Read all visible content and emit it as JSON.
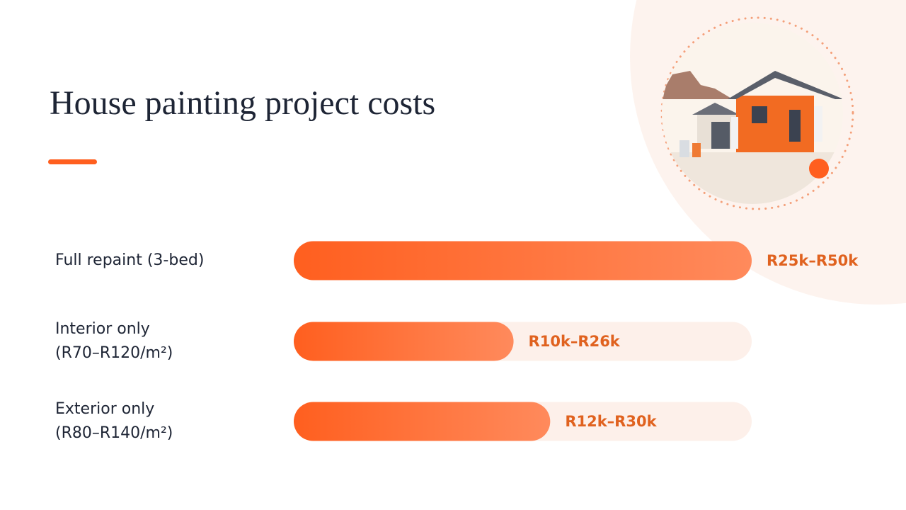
{
  "chart_data": {
    "type": "range-bar",
    "title": "House painting project costs",
    "categories": [
      "Full repaint (3-bed)",
      "Interior only\n(R70–R120/m²)",
      "Exterior only\n(R80–R140/m²)"
    ],
    "low": [
      25,
      10,
      12
    ],
    "high": [
      50,
      26,
      30
    ],
    "value_labels": [
      "R25k–R50k",
      "R10k–R26k",
      "R12k–R30k"
    ],
    "xlim": [
      0,
      37.5
    ],
    "color": "#ff5f1f"
  }
}
